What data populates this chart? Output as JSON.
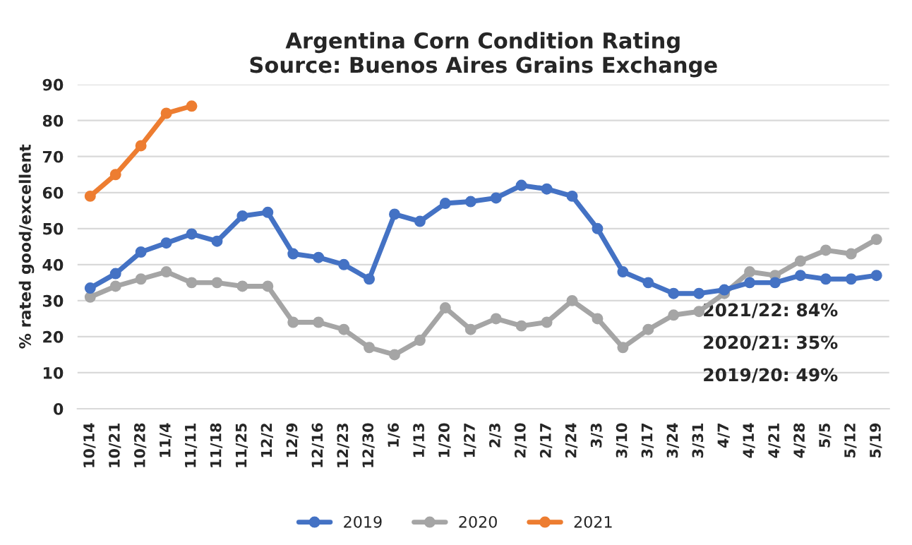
{
  "chart_data": {
    "type": "line",
    "title": "Argentina Corn Condition Rating\nSource: Buenos Aires Grains Exchange",
    "ylabel": "% rated good/excellent",
    "categories": [
      "10/14",
      "10/21",
      "10/28",
      "11/4",
      "11/11",
      "11/18",
      "11/25",
      "12/2",
      "12/9",
      "12/16",
      "12/23",
      "12/30",
      "1/6",
      "1/13",
      "1/20",
      "1/27",
      "2/3",
      "2/10",
      "2/17",
      "2/24",
      "3/3",
      "3/10",
      "3/17",
      "3/24",
      "3/31",
      "4/7",
      "4/14",
      "4/21",
      "4/28",
      "5/5",
      "5/12",
      "5/19"
    ],
    "series": [
      {
        "name": "2019",
        "color": "#4472c4",
        "values": [
          33.5,
          37.5,
          43.5,
          46,
          48.5,
          46.5,
          53.5,
          54.5,
          43,
          42,
          40,
          36,
          54,
          52,
          57,
          57.5,
          58.5,
          62,
          61,
          59,
          50,
          38,
          35,
          32,
          32,
          33,
          35,
          35,
          37,
          36,
          36,
          37
        ]
      },
      {
        "name": "2020",
        "color": "#a5a5a5",
        "values": [
          31,
          34,
          36,
          38,
          35,
          35,
          34,
          34,
          24,
          24,
          22,
          17,
          15,
          19,
          28,
          22,
          25,
          23,
          24,
          30,
          25,
          17,
          22,
          26,
          27,
          32,
          38,
          37,
          41,
          44,
          43,
          47
        ]
      },
      {
        "name": "2021",
        "color": "#ed7d31",
        "values": [
          59,
          65,
          73,
          82,
          84,
          null,
          null,
          null,
          null,
          null,
          null,
          null,
          null,
          null,
          null,
          null,
          null,
          null,
          null,
          null,
          null,
          null,
          null,
          null,
          null,
          null,
          null,
          null,
          null,
          null,
          null,
          null
        ]
      }
    ],
    "ylim": [
      0,
      90
    ],
    "yticks": [
      0,
      10,
      20,
      30,
      40,
      50,
      60,
      70,
      80,
      90
    ],
    "grid": "y",
    "legend": "bottom",
    "marker": "circle",
    "line_style": "solid",
    "annotations": [
      "2021/22: 84%",
      "2020/21: 35%",
      "2019/20: 49%"
    ]
  }
}
